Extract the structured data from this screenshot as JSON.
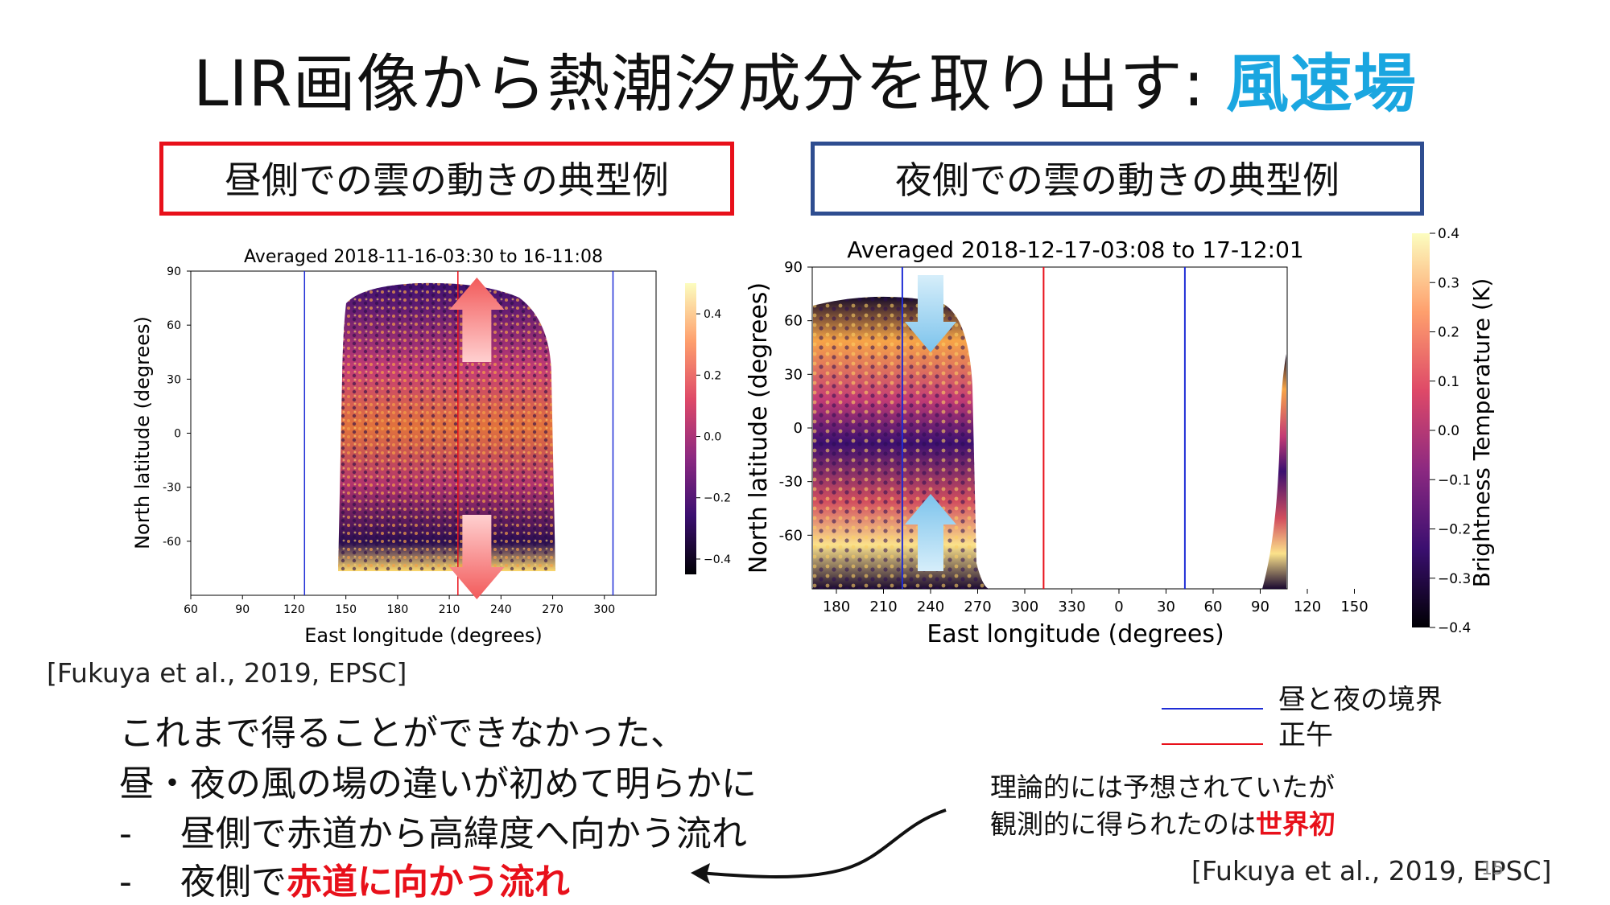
{
  "title": {
    "main": "LIR画像から熱潮汐成分を取り出す: ",
    "accent": "風速場"
  },
  "day_label": "昼側での雲の動きの典型例",
  "night_label": "夜側での雲の動きの典型例",
  "chart_data": [
    {
      "type": "heatmap",
      "title": "Averaged 2018-11-16-03:30 to 16-11:08",
      "xlabel": "East longitude (degrees)",
      "ylabel": "North latitude (degrees)",
      "x_ticks": [
        "60",
        "90",
        "120",
        "150",
        "180",
        "210",
        "240",
        "270",
        "300"
      ],
      "y_ticks": [
        "90",
        "60",
        "30",
        "0",
        "-30",
        "-60"
      ],
      "xlim": [
        60,
        330
      ],
      "ylim": [
        -90,
        90
      ],
      "colorbar": {
        "ticks": [
          "0.4",
          "0.2",
          "0.0",
          "−0.2",
          "−0.4"
        ],
        "range": [
          -0.45,
          0.5
        ]
      },
      "lines": {
        "terminator": [
          126,
          305
        ],
        "noon": [
          215
        ]
      },
      "arrows": [
        "poleward-north",
        "poleward-south"
      ]
    },
    {
      "type": "heatmap",
      "title": "Averaged 2018-12-17-03:08 to 17-12:01",
      "xlabel": "East longitude (degrees)",
      "ylabel": "North latitude (degrees)",
      "x_ticks": [
        "180",
        "210",
        "240",
        "270",
        "300",
        "330",
        "0",
        "30",
        "60",
        "90",
        "120",
        "150"
      ],
      "y_ticks": [
        "90",
        "60",
        "30",
        "0",
        "-30",
        "-60"
      ],
      "ylim": [
        -90,
        90
      ],
      "colorbar": {
        "label": "Brightness Temperature (K)",
        "ticks": [
          "0.4",
          "0.3",
          "0.2",
          "0.1",
          "0.0",
          "−0.1",
          "−0.2",
          "−0.3",
          "−0.4"
        ],
        "range": [
          -0.4,
          0.4
        ]
      },
      "lines": {
        "terminator": [
          222,
          42
        ],
        "noon": [
          312
        ]
      },
      "arrows": [
        "equatorward-north",
        "equatorward-south"
      ]
    }
  ],
  "citation_left": "[Fukuya et al., 2019, EPSC]",
  "citation_right": "[Fukuya et al., 2019, EPSC]",
  "page_number": "15",
  "legend": {
    "terminator": "昼と夜の境界",
    "noon": "正午",
    "terminator_color": "#1f2dd6",
    "noon_color": "#e8101a"
  },
  "body": {
    "line1": "これまで得ることができなかった、",
    "line2": "昼・夜の風の場の違いが初めて明らかに",
    "bullet": "-",
    "line3": "昼側で赤道から高緯度へ向かう流れ",
    "line4_prefix": "夜側で",
    "line4_red": "赤道に向かう流れ"
  },
  "note": {
    "line1": "理論的には予想されていたが",
    "line2_prefix": "観測的に得られたのは",
    "line2_red": "世界初"
  }
}
